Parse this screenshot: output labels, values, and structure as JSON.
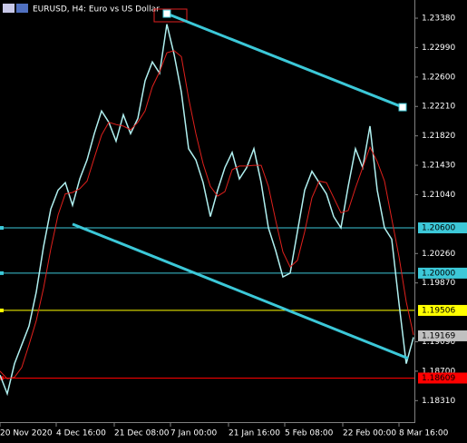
{
  "chart_data": {
    "type": "line",
    "title": "EURUSD, H4:  Euro vs US Dollar",
    "x": [
      0,
      4,
      8,
      12,
      16,
      20,
      24,
      28,
      32,
      36,
      40,
      44,
      48,
      52,
      56,
      60,
      64,
      68,
      72,
      76,
      80,
      84,
      88,
      92,
      96,
      100,
      104,
      108,
      112,
      116,
      120,
      124,
      128,
      132,
      136,
      140,
      144,
      148,
      152,
      156,
      160,
      164,
      168,
      172,
      176,
      180,
      184,
      188,
      192,
      196,
      200,
      204,
      208,
      212,
      216,
      220,
      224,
      228
    ],
    "series": [
      {
        "color": "#b0f0f0",
        "values": [
          1.1865,
          1.184,
          1.188,
          1.1905,
          1.193,
          1.1975,
          1.2035,
          1.2085,
          1.211,
          1.212,
          1.209,
          1.2125,
          1.215,
          1.2185,
          1.2215,
          1.22,
          1.2175,
          1.221,
          1.2185,
          1.2205,
          1.2255,
          1.228,
          1.2265,
          1.233,
          1.229,
          1.224,
          1.2165,
          1.215,
          1.212,
          1.2075,
          1.211,
          1.214,
          1.216,
          1.2125,
          1.214,
          1.2165,
          1.212,
          1.206,
          1.203,
          1.1995,
          1.2,
          1.2055,
          1.211,
          1.2135,
          1.212,
          1.2105,
          1.2075,
          1.206,
          1.2115,
          1.2165,
          1.214,
          1.2195,
          1.211,
          1.206,
          1.2045,
          1.196,
          1.188,
          1.1915
        ]
      },
      {
        "color": "#e0201c",
        "values": [
          1.187,
          1.186,
          1.1862,
          1.1875,
          1.1905,
          1.1937,
          1.198,
          1.2032,
          1.2077,
          1.2105,
          1.2107,
          1.2112,
          1.2122,
          1.2153,
          1.2183,
          1.22,
          1.2197,
          1.2195,
          1.219,
          1.22,
          1.2215,
          1.2247,
          1.2267,
          1.2292,
          1.2295,
          1.2287,
          1.2232,
          1.2185,
          1.2145,
          1.2115,
          1.2102,
          1.2108,
          1.2137,
          1.2142,
          1.2142,
          1.2143,
          1.2143,
          1.2115,
          1.207,
          1.2028,
          1.2008,
          1.2017,
          1.2055,
          1.21,
          1.2122,
          1.212,
          1.21,
          1.208,
          1.2083,
          1.2113,
          1.214,
          1.2167,
          1.2148,
          1.2122,
          1.2072,
          1.2022,
          1.1962,
          1.1918
        ]
      }
    ],
    "trendlines": [
      {
        "color": "#3cc8d8",
        "x": [
          92,
          222
        ],
        "y": [
          1.2344,
          1.222
        ]
      },
      {
        "color": "#3cc8d8",
        "x": [
          40,
          225
        ],
        "y": [
          1.2065,
          1.1887
        ]
      }
    ],
    "levels": [
      {
        "value": 1.206,
        "label": "1.20600",
        "color": "#3cc8d8",
        "line": true
      },
      {
        "value": 1.2,
        "label": "1.20000",
        "color": "#3cc8d8",
        "line": true
      },
      {
        "value": 1.19506,
        "label": "1.19506",
        "color": "#ffff00",
        "line": true
      },
      {
        "value": 1.19169,
        "label": "1.19169",
        "color": "#c0c0c0",
        "line": false
      },
      {
        "value": 1.18609,
        "label": "1.18609",
        "color": "#ff0000",
        "line": true
      }
    ],
    "xlim": [
      0,
      228.5
    ],
    "xticks": [
      {
        "value": 0,
        "label": "20 Nov 2020"
      },
      {
        "value": 31,
        "label": "4 Dec 16:00"
      },
      {
        "value": 63,
        "label": "21 Dec 08:00"
      },
      {
        "value": 94,
        "label": "7 Jan 00:00"
      },
      {
        "value": 126,
        "label": "21 Jan 16:00"
      },
      {
        "value": 157,
        "label": "5 Feb 08:00"
      },
      {
        "value": 189,
        "label": "22 Feb 00:00"
      },
      {
        "value": 220,
        "label": "8 Mar 16:00"
      }
    ],
    "ylim": [
      1.18025,
      1.23621
    ],
    "yticks": [
      {
        "value": 1.2338,
        "label": "1.23380"
      },
      {
        "value": 1.2299,
        "label": "1.22990"
      },
      {
        "value": 1.226,
        "label": "1.22600"
      },
      {
        "value": 1.2221,
        "label": "1.22210"
      },
      {
        "value": 1.2182,
        "label": "1.21820"
      },
      {
        "value": 1.2143,
        "label": "1.21430"
      },
      {
        "value": 1.2104,
        "label": "1.21040"
      },
      {
        "value": 1.2026,
        "label": "1.20260"
      },
      {
        "value": 1.1987,
        "label": "1.19870"
      },
      {
        "value": 1.1909,
        "label": "1.19090"
      },
      {
        "value": 1.187,
        "label": "1.18700"
      },
      {
        "value": 1.1831,
        "label": "1.18310"
      }
    ],
    "grid": false
  }
}
